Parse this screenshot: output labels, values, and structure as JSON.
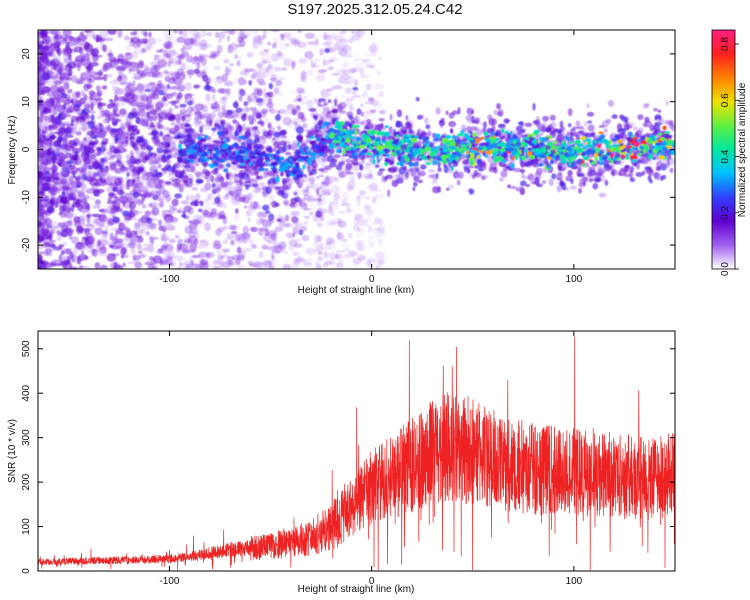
{
  "title": "S197.2025.312.05.24.C42",
  "chart_data": [
    {
      "type": "heatmap",
      "title": "S197.2025.312.05.24.C42",
      "xlabel": "Height of straight line (km)",
      "ylabel": "Frequency (Hz)",
      "xlim": [
        -165,
        150
      ],
      "ylim": [
        -25,
        25
      ],
      "xticks": [
        -100,
        0,
        100
      ],
      "yticks": [
        -20,
        -10,
        0,
        10,
        20
      ],
      "grid": false,
      "colorbar": {
        "label": "Normalized spectral amplitude",
        "range": [
          0,
          0.85
        ],
        "ticks": [
          "0.0",
          "0.2",
          "0.4",
          "0.6",
          "0.8"
        ],
        "colormap": [
          "#ffffff",
          "#a060f0",
          "#6000d0",
          "#3040ff",
          "#00c0ff",
          "#00e8a0",
          "#60f040",
          "#f0e000",
          "#ff8000",
          "#ff2020",
          "#ff2080"
        ]
      },
      "ridge": {
        "description_points_x": [
          -90,
          -60,
          -40,
          -20,
          0,
          20,
          40,
          60,
          80,
          100,
          120,
          145
        ],
        "description_points_freq": [
          0,
          -1,
          -4,
          3,
          1,
          0,
          0,
          1,
          0,
          -1,
          0,
          1
        ],
        "peak_amplitude_start_x": -20
      }
    },
    {
      "type": "line",
      "xlabel": "Height of straight line (km)",
      "ylabel": "SNR (10 * v/v)",
      "xlim": [
        -165,
        150
      ],
      "ylim": [
        0,
        540
      ],
      "xticks": [
        -100,
        0,
        100
      ],
      "yticks": [
        0,
        100,
        200,
        300,
        400,
        500
      ],
      "series": [
        {
          "name": "SNR",
          "color": "#ee2222",
          "x": [
            -165,
            -150,
            -130,
            -110,
            -100,
            -90,
            -80,
            -70,
            -60,
            -50,
            -40,
            -30,
            -20,
            -10,
            0,
            10,
            20,
            30,
            40,
            50,
            60,
            70,
            80,
            90,
            100,
            110,
            120,
            130,
            140,
            150
          ],
          "y": [
            20,
            22,
            24,
            25,
            28,
            33,
            40,
            48,
            52,
            55,
            65,
            75,
            100,
            140,
            190,
            210,
            240,
            270,
            280,
            270,
            250,
            240,
            230,
            225,
            225,
            220,
            215,
            210,
            210,
            215
          ]
        }
      ]
    }
  ]
}
